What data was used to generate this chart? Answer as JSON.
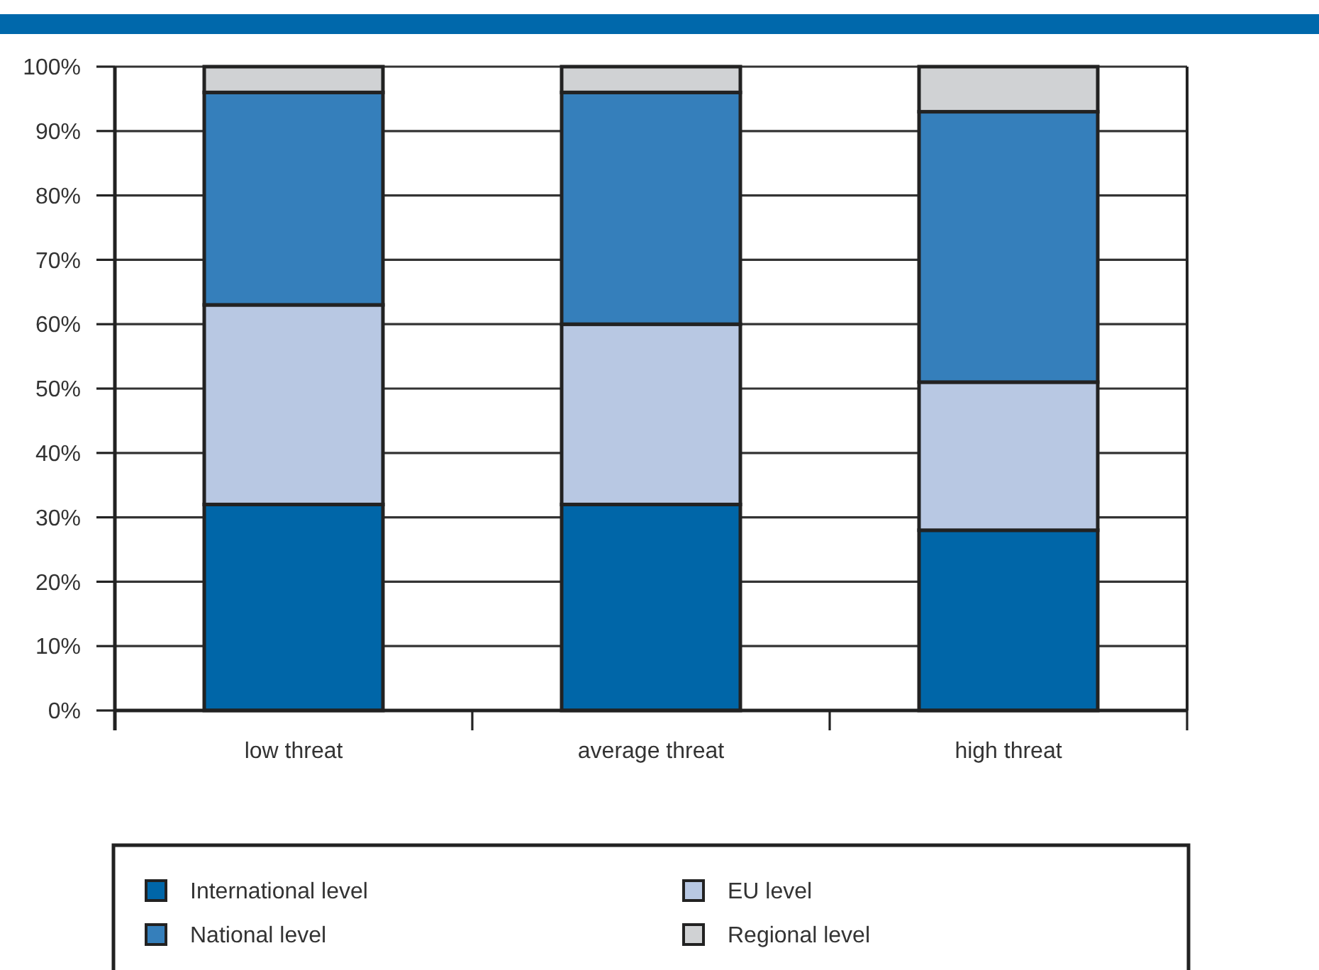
{
  "chart_data": {
    "type": "bar",
    "stacked": true,
    "categories": [
      "low threat",
      "average threat",
      "high threat"
    ],
    "series": [
      {
        "name": "International level",
        "color": "#0066a8",
        "values": [
          32,
          32,
          28
        ]
      },
      {
        "name": "EU level",
        "color": "#b8c8e3",
        "values": [
          31,
          28,
          23
        ]
      },
      {
        "name": "National level",
        "color": "#357fbb",
        "values": [
          33,
          36,
          42
        ]
      },
      {
        "name": "Regional level",
        "color": "#d0d2d4",
        "values": [
          4,
          4,
          7
        ]
      }
    ],
    "ylim": [
      0,
      100
    ],
    "yticks": [
      {
        "value": 0,
        "label": "0%"
      },
      {
        "value": 10,
        "label": "10%"
      },
      {
        "value": 20,
        "label": "20%"
      },
      {
        "value": 30,
        "label": "30%"
      },
      {
        "value": 40,
        "label": "40%"
      },
      {
        "value": 50,
        "label": "50%"
      },
      {
        "value": 60,
        "label": "60%"
      },
      {
        "value": 70,
        "label": "70%"
      },
      {
        "value": 80,
        "label": "80%"
      },
      {
        "value": 90,
        "label": "90%"
      },
      {
        "value": 100,
        "label": "100%"
      }
    ],
    "grid": "y",
    "legend": "bottom"
  }
}
